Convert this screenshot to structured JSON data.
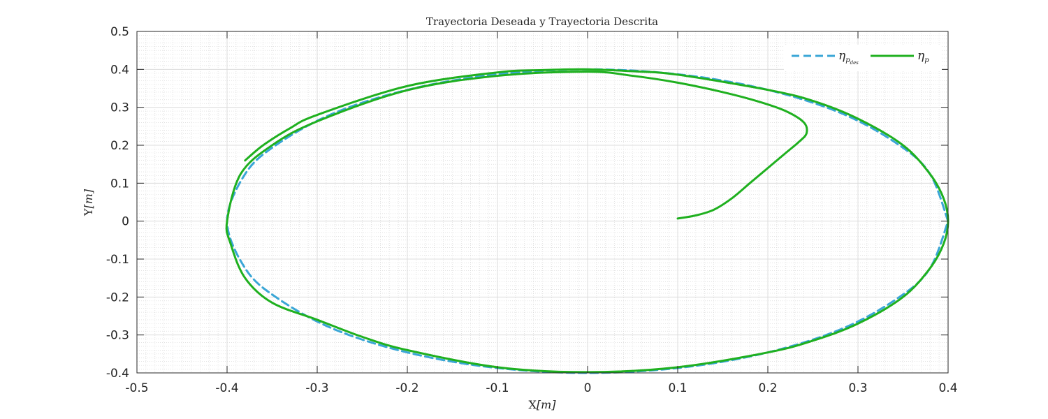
{
  "chart_data": {
    "type": "line",
    "title": "Trayectoria Deseada y Trayectoria Descrita",
    "xlabel": {
      "main": "X",
      "unit": "[m]"
    },
    "ylabel": {
      "main": "Y",
      "unit": "[m]"
    },
    "xlim": [
      -0.5,
      0.4
    ],
    "ylim": [
      -0.4,
      0.5
    ],
    "xticks": [
      -0.5,
      -0.4,
      -0.3,
      -0.2,
      -0.1,
      0,
      0.1,
      0.2,
      0.3,
      0.4
    ],
    "xtick_labels": [
      "-0.5",
      "-0.4",
      "-0.3",
      "-0.2",
      "-0.1",
      "0",
      "0.1",
      "0.2",
      "0.3",
      "0.4"
    ],
    "yticks": [
      -0.4,
      -0.3,
      -0.2,
      -0.1,
      0,
      0.1,
      0.2,
      0.3,
      0.4,
      0.5
    ],
    "ytick_labels": [
      "-0.4",
      "-0.3",
      "-0.2",
      "-0.1",
      "0",
      "0.1",
      "0.2",
      "0.3",
      "0.4",
      "0.5"
    ],
    "grid": true,
    "minor_grid": true,
    "legend_position": "top-right",
    "series": [
      {
        "name": "η",
        "name_sub": "p",
        "name_subsub": "des",
        "color": "#3aa6d6",
        "style": "dashed",
        "x": [
          0.4,
          0.38,
          0.346,
          0.283,
          0.2,
          0.104,
          0,
          -0.104,
          -0.2,
          -0.283,
          -0.346,
          -0.38,
          -0.4,
          -0.38,
          -0.346,
          -0.283,
          -0.2,
          -0.104,
          0,
          0.104,
          0.2,
          0.283,
          0.346,
          0.38,
          0.4
        ],
        "y": [
          0,
          0.124,
          0.2,
          0.283,
          0.346,
          0.386,
          0.4,
          0.386,
          0.346,
          0.283,
          0.2,
          0.124,
          0,
          -0.124,
          -0.2,
          -0.283,
          -0.346,
          -0.386,
          -0.4,
          -0.386,
          -0.346,
          -0.283,
          -0.2,
          -0.124,
          0
        ]
      },
      {
        "name": "η",
        "name_sub": "p",
        "color": "#1fb01f",
        "style": "solid",
        "x": [
          0.1,
          0.12,
          0.14,
          0.16,
          0.18,
          0.2,
          0.22,
          0.235,
          0.243,
          0.24,
          0.22,
          0.19,
          0.15,
          0.1,
          0.05,
          0,
          -0.1,
          -0.2,
          -0.3,
          -0.35,
          -0.385,
          -0.4,
          -0.396,
          -0.38,
          -0.35,
          -0.3,
          -0.25,
          -0.2,
          -0.1,
          0,
          0.1,
          0.2,
          0.25,
          0.3,
          0.35,
          0.38,
          0.395,
          0.4,
          0.395,
          0.38,
          0.35,
          0.3,
          0.25,
          0.2,
          0.1,
          0.05,
          0,
          -0.05,
          -0.1,
          -0.2,
          -0.3,
          -0.33,
          -0.36,
          -0.38
        ],
        "y": [
          0.007,
          0.015,
          0.03,
          0.06,
          0.1,
          0.14,
          0.18,
          0.21,
          0.232,
          0.26,
          0.29,
          0.315,
          0.34,
          0.365,
          0.383,
          0.394,
          0.383,
          0.345,
          0.263,
          0.2,
          0.124,
          0.0,
          -0.06,
          -0.15,
          -0.215,
          -0.26,
          -0.305,
          -0.34,
          -0.385,
          -0.398,
          -0.385,
          -0.346,
          -0.315,
          -0.27,
          -0.2,
          -0.124,
          -0.06,
          0,
          0.06,
          0.124,
          0.2,
          0.27,
          0.317,
          0.346,
          0.386,
          0.395,
          0.4,
          0.398,
          0.392,
          0.356,
          0.28,
          0.245,
          0.2,
          0.16
        ]
      }
    ]
  }
}
